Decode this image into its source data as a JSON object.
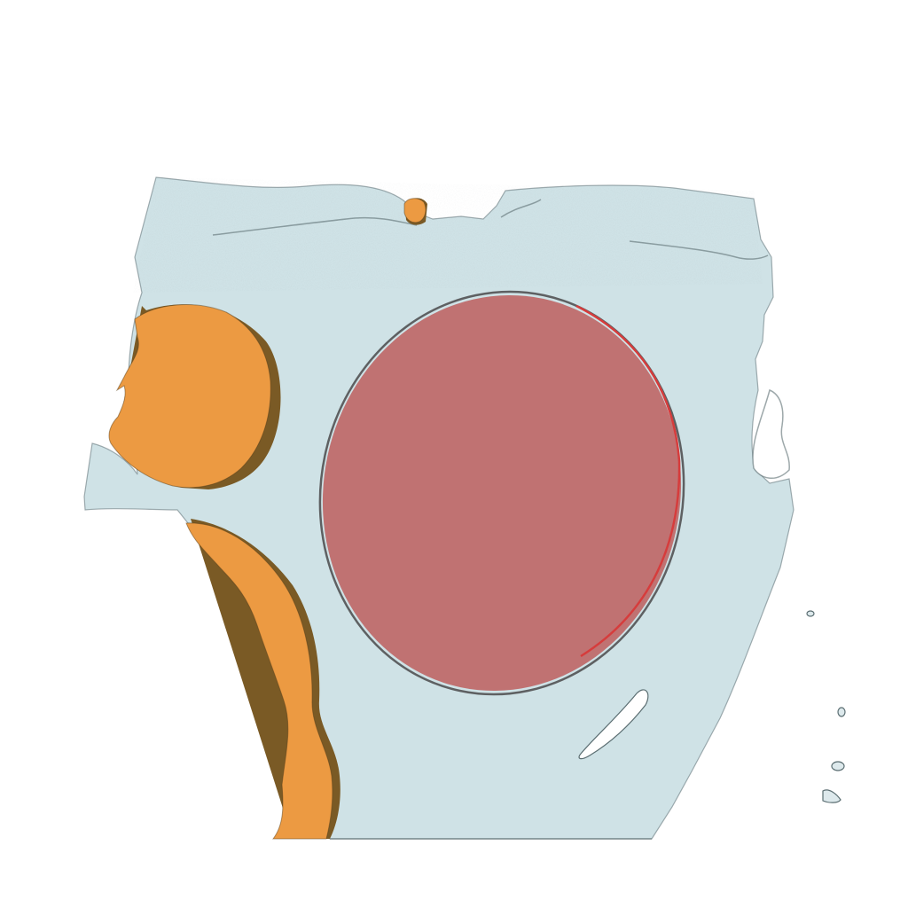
{
  "scene": {
    "kind": "3d-segmentation-render",
    "background_color": "#ffffff",
    "colors": {
      "tissue": "#cfe2e6",
      "tissue_edge": "#aeced6",
      "tissue_outline": "#5b6e72",
      "large_lesion": "#c07272",
      "large_lesion_edge": "#d63c3c",
      "orange_structure": "#ec9a42",
      "orange_shadow": "#7a5a25",
      "small_fragment": "#dde9ec"
    },
    "structures": [
      {
        "name": "tissue-block",
        "label": ""
      },
      {
        "name": "large-red-ellipse",
        "label": ""
      },
      {
        "name": "orange-upper-left-mass",
        "label": ""
      },
      {
        "name": "orange-lower-left-band",
        "label": ""
      },
      {
        "name": "orange-top-nub",
        "label": ""
      },
      {
        "name": "white-slit-hole",
        "label": ""
      },
      {
        "name": "right-edge-fragments",
        "label": ""
      }
    ]
  }
}
